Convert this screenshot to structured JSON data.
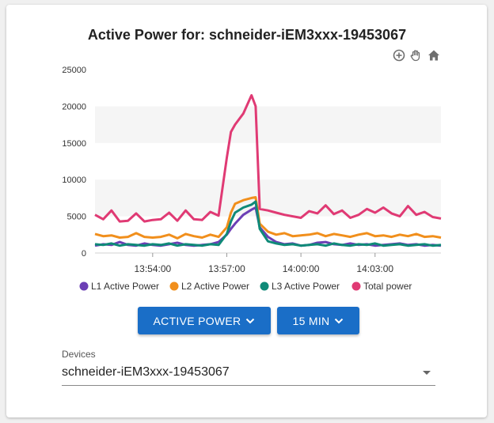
{
  "chart_data": {
    "type": "line",
    "title": "Active Power for: schneider-iEM3xxx-19453067",
    "ylim": [
      0,
      25000
    ],
    "y_ticks": [
      "0",
      "5000",
      "10000",
      "15000",
      "20000",
      "25000"
    ],
    "x_range": [
      "13:51:40",
      "14:05:40"
    ],
    "x_ticks": [
      {
        "time": "13:54:00",
        "label": "13:54:00"
      },
      {
        "time": "13:57:00",
        "label": "13:57:00"
      },
      {
        "time": "14:00:00",
        "label": "14:00:00"
      },
      {
        "time": "14:03:00",
        "label": "14:03:00"
      }
    ],
    "grid": "horizontal bands",
    "legend_position": "bottom",
    "x": [
      "13:51:40",
      "13:52:00",
      "13:52:20",
      "13:52:40",
      "13:53:00",
      "13:53:20",
      "13:53:40",
      "13:54:00",
      "13:54:20",
      "13:54:40",
      "13:55:00",
      "13:55:20",
      "13:55:40",
      "13:56:00",
      "13:56:20",
      "13:56:40",
      "13:57:00",
      "13:57:10",
      "13:57:20",
      "13:57:40",
      "13:58:00",
      "13:58:10",
      "13:58:20",
      "13:58:40",
      "13:59:00",
      "13:59:20",
      "13:59:40",
      "14:00:00",
      "14:00:20",
      "14:00:40",
      "14:01:00",
      "14:01:20",
      "14:01:40",
      "14:02:00",
      "14:02:20",
      "14:02:40",
      "14:03:00",
      "14:03:20",
      "14:03:40",
      "14:04:00",
      "14:04:20",
      "14:04:40",
      "14:05:00",
      "14:05:20",
      "14:05:40"
    ],
    "series": [
      {
        "name": "L1 Active Power",
        "color": "#6c3fb5",
        "values": [
          1000,
          1200,
          1100,
          1500,
          1100,
          1000,
          1300,
          1100,
          1000,
          1200,
          1400,
          1100,
          1000,
          1100,
          1200,
          1500,
          2500,
          3300,
          4000,
          5200,
          5900,
          6200,
          3500,
          2200,
          1500,
          1200,
          1300,
          1000,
          1100,
          1400,
          1500,
          1200,
          1100,
          1300,
          1100,
          1200,
          1000,
          1100,
          1200,
          1300,
          1100,
          1200,
          1000,
          1100,
          1000
        ]
      },
      {
        "name": "L2 Active Power",
        "color": "#f18f1c",
        "values": [
          2600,
          2300,
          2400,
          2100,
          2200,
          2700,
          2200,
          2100,
          2200,
          2500,
          2000,
          2600,
          2300,
          2100,
          2500,
          2200,
          3500,
          5500,
          6700,
          7200,
          7500,
          7600,
          4000,
          2900,
          2500,
          2700,
          2300,
          2400,
          2500,
          2700,
          2300,
          2600,
          2400,
          2200,
          2500,
          2700,
          2300,
          2400,
          2200,
          2500,
          2300,
          2600,
          2200,
          2300,
          2100
        ]
      },
      {
        "name": "L3 Active Power",
        "color": "#0f8a78",
        "values": [
          1200,
          1100,
          1300,
          1000,
          1200,
          1100,
          1000,
          1200,
          1100,
          1300,
          1000,
          1200,
          1100,
          1000,
          1200,
          1100,
          2600,
          4300,
          5500,
          6200,
          6600,
          7000,
          3300,
          1600,
          1300,
          1100,
          1200,
          1000,
          1100,
          1200,
          1000,
          1300,
          1100,
          1000,
          1200,
          1100,
          1300,
          1000,
          1100,
          1200,
          1000,
          1100,
          1200,
          1000,
          1100
        ]
      },
      {
        "name": "Total power",
        "color": "#e03a74",
        "values": [
          5200,
          4600,
          5800,
          4300,
          4400,
          5400,
          4300,
          4500,
          4600,
          5500,
          4400,
          5800,
          4600,
          4500,
          5600,
          5100,
          13000,
          16500,
          17500,
          19000,
          21500,
          20000,
          6000,
          5800,
          5500,
          5200,
          5000,
          4800,
          5700,
          5400,
          6500,
          5300,
          5800,
          4800,
          5200,
          6000,
          5500,
          6200,
          5400,
          5000,
          6400,
          5200,
          5600,
          4900,
          4700
        ]
      }
    ]
  },
  "toolbar": {
    "zoom_in_icon": "zoom-in-icon",
    "pan_icon": "hand-pan-icon",
    "home_icon": "home-icon",
    "icon_color": "#6f6f6f"
  },
  "controls": {
    "metric_button_label": "ACTIVE POWER",
    "interval_button_label": "15 MIN",
    "button_color": "#1a6ec7"
  },
  "devices": {
    "label": "Devices",
    "selected": "schneider-iEM3xxx-19453067"
  }
}
